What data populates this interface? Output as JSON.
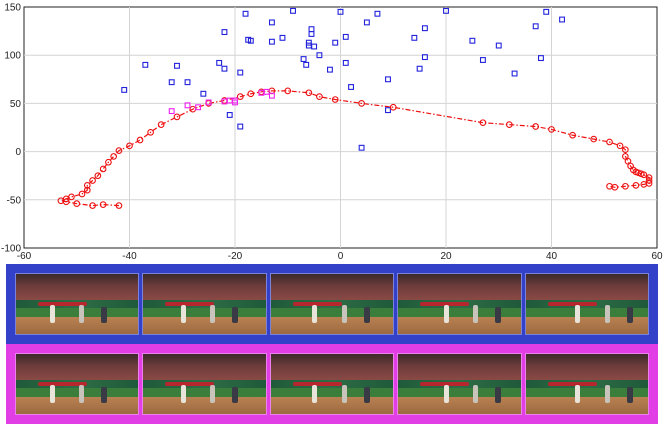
{
  "chart_data": {
    "type": "scatter",
    "xlim": [
      -60,
      60
    ],
    "ylim": [
      -100,
      150
    ],
    "x_ticks": [
      -60,
      -40,
      -20,
      0,
      20,
      40,
      60
    ],
    "y_ticks": [
      -100,
      -50,
      0,
      50,
      100,
      150
    ],
    "grid": true,
    "series": [
      {
        "marker": "square",
        "color": "#2222dd",
        "points": [
          [
            -41,
            64
          ],
          [
            -37,
            90
          ],
          [
            -32,
            72
          ],
          [
            -31,
            89
          ],
          [
            -29,
            72
          ],
          [
            -26,
            60
          ],
          [
            -23,
            92
          ],
          [
            -22,
            86
          ],
          [
            -21,
            38
          ],
          [
            -22,
            124
          ],
          [
            -19,
            82
          ],
          [
            -19,
            26
          ],
          [
            -18,
            143
          ],
          [
            -17.5,
            116
          ],
          [
            -17,
            115
          ],
          [
            -13,
            134
          ],
          [
            -13,
            114
          ],
          [
            -11,
            118
          ],
          [
            -9,
            146
          ],
          [
            -7,
            96
          ],
          [
            -6.5,
            90
          ],
          [
            -6,
            110
          ],
          [
            -6,
            113
          ],
          [
            -5.5,
            122
          ],
          [
            -5.5,
            127
          ],
          [
            -5,
            109
          ],
          [
            -4,
            100
          ],
          [
            -2,
            85
          ],
          [
            -1,
            113
          ],
          [
            0,
            145
          ],
          [
            1,
            92
          ],
          [
            1,
            119
          ],
          [
            2,
            67
          ],
          [
            4,
            4
          ],
          [
            5,
            134
          ],
          [
            7,
            143
          ],
          [
            9,
            75
          ],
          [
            9,
            43
          ],
          [
            14,
            118
          ],
          [
            15,
            86
          ],
          [
            16,
            128
          ],
          [
            16,
            98
          ],
          [
            20,
            146
          ],
          [
            25,
            115
          ],
          [
            27,
            95
          ],
          [
            30,
            110
          ],
          [
            33,
            81
          ],
          [
            37,
            130
          ],
          [
            38,
            97
          ],
          [
            39,
            145
          ],
          [
            42,
            137
          ]
        ]
      },
      {
        "marker": "circle",
        "color": "#ee1111",
        "line": "dashdot",
        "points": [
          [
            -42,
            -56
          ],
          [
            -45,
            -55
          ],
          [
            -47,
            -56
          ],
          [
            -50,
            -54
          ],
          [
            -52,
            -52
          ],
          [
            -53,
            -51
          ],
          [
            -52,
            -49
          ],
          [
            -51,
            -47
          ],
          [
            -49,
            -44
          ],
          [
            -48,
            -40
          ],
          [
            -48,
            -35
          ],
          [
            -47,
            -30
          ],
          [
            -46,
            -25
          ],
          [
            -45,
            -18
          ],
          [
            -44,
            -11
          ],
          [
            -43,
            -5
          ],
          [
            -42,
            1
          ],
          [
            -40,
            6
          ],
          [
            -38,
            12
          ],
          [
            -36,
            20
          ],
          [
            -34,
            28
          ],
          [
            -31,
            36
          ],
          [
            -28,
            44
          ],
          [
            -25,
            50
          ],
          [
            -22,
            53
          ],
          [
            -19,
            57
          ],
          [
            -17,
            60
          ],
          [
            -15,
            62
          ],
          [
            -13,
            63
          ],
          [
            -10,
            63
          ],
          [
            -6,
            61
          ],
          [
            -4,
            57
          ],
          [
            -1,
            54
          ],
          [
            4,
            50
          ],
          [
            10,
            46
          ],
          [
            27,
            30
          ],
          [
            32,
            28
          ],
          [
            37,
            26
          ],
          [
            40,
            23
          ],
          [
            44,
            17
          ],
          [
            48,
            13
          ],
          [
            51,
            10
          ],
          [
            53,
            6
          ],
          [
            54,
            2
          ],
          [
            54,
            -5
          ],
          [
            54.5,
            -10
          ],
          [
            55,
            -15
          ],
          [
            55.5,
            -19
          ],
          [
            56,
            -21
          ],
          [
            56.5,
            -22
          ],
          [
            57,
            -23
          ],
          [
            57.5,
            -24
          ],
          [
            58.5,
            -27
          ],
          [
            58.5,
            -30
          ],
          [
            58.5,
            -33
          ],
          [
            57.5,
            -34
          ],
          [
            56,
            -35
          ],
          [
            54,
            -36
          ],
          [
            52,
            -37
          ],
          [
            51,
            -36
          ]
        ]
      },
      {
        "marker": "square",
        "color": "#ee22ee",
        "points": [
          [
            -32,
            42
          ],
          [
            -29,
            48
          ],
          [
            -27,
            46
          ],
          [
            -25,
            51
          ],
          [
            -22,
            52
          ],
          [
            -21,
            53
          ],
          [
            -20,
            51
          ],
          [
            -20,
            53
          ],
          [
            -15,
            61
          ],
          [
            -14,
            62
          ],
          [
            -13,
            58
          ]
        ]
      }
    ]
  },
  "frames": {
    "blue_strip_count": 5,
    "magenta_strip_count": 5,
    "blue_border_color": "#3340c8",
    "magenta_border_color": "#e13ee6"
  }
}
